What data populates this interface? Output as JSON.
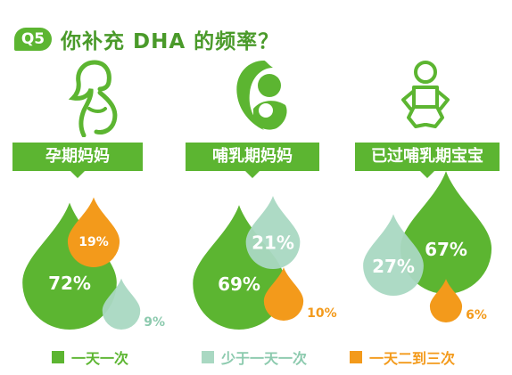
{
  "header": {
    "badge": "Q5",
    "title": "你补充 DHA 的频率？"
  },
  "groups": [
    {
      "label": "孕期妈妈",
      "icon": "pregnant-woman-icon"
    },
    {
      "label": "哺乳期妈妈",
      "icon": "breastfeeding-mother-icon"
    },
    {
      "label": "已过哺乳期宝宝",
      "icon": "baby-icon"
    }
  ],
  "chart_data": {
    "type": "bubble",
    "categories": [
      "孕期妈妈",
      "哺乳期妈妈",
      "已过哺乳期宝宝"
    ],
    "series": [
      {
        "name": "一天一次",
        "values": [
          72,
          69,
          67
        ],
        "labels": [
          "72%",
          "69%",
          "67%"
        ]
      },
      {
        "name": "少于一天一次",
        "values": [
          9,
          21,
          27
        ],
        "labels": [
          "9%",
          "21%",
          "27%"
        ]
      },
      {
        "name": "一天二到三次",
        "values": [
          19,
          10,
          6
        ],
        "labels": [
          "19%",
          "10%",
          "6%"
        ]
      }
    ]
  },
  "legend": [
    {
      "label": "一天一次",
      "color": "#5cb531"
    },
    {
      "label": "少于一天一次",
      "color": "#a9d8c2"
    },
    {
      "label": "一天二到三次",
      "color": "#f39a1b"
    }
  ],
  "colors": {
    "green": "#5cb531",
    "light_green": "#a9d8c2",
    "orange": "#f39a1b"
  }
}
